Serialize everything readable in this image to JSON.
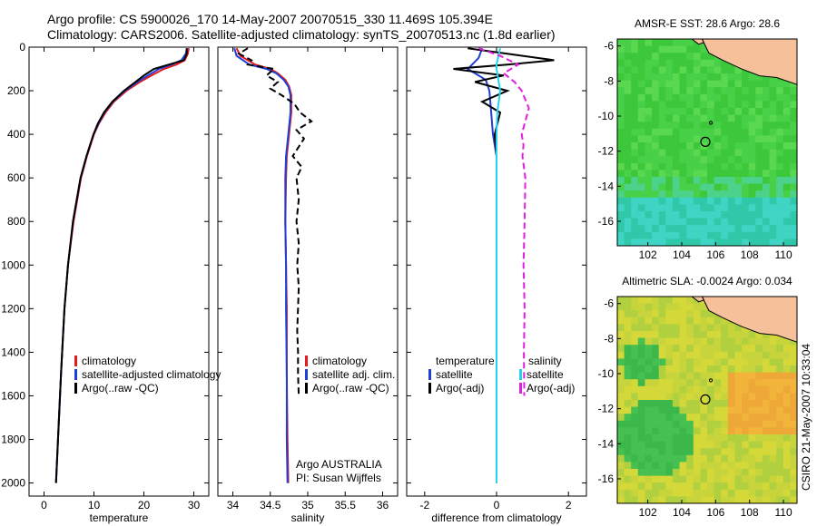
{
  "header": {
    "line1": "Argo profile: CS 5900026_170 14-May-2007 20070515_330 11.469S 105.394E",
    "line2": "Climatology: CARS2006. Satellite-adjusted climatology: synTS_20070513.nc (1.8d earlier)"
  },
  "footer": {
    "vertical_stamp": "CSIRO 21-May-2007 10:33:04"
  },
  "colors": {
    "clim": "#e41a1c",
    "sat": "#1f3fd6",
    "argo": "#000000",
    "sal": "#e020e0",
    "sal_sat": "#22d4ee",
    "land": "#f5c09a"
  },
  "chart_data": [
    {
      "type": "line",
      "id": "temperature",
      "xlabel": "temperature",
      "ylabel": "",
      "xlim": [
        -3,
        33
      ],
      "ylim": [
        2060,
        0
      ],
      "y_inverted": true,
      "xticks": [
        0,
        10,
        20,
        30
      ],
      "yticks": [
        0,
        200,
        400,
        600,
        800,
        1000,
        1200,
        1400,
        1600,
        1800,
        2000
      ],
      "legend": [
        "climatology",
        "satellite-adjusted climatology",
        "Argo(..raw -QC)"
      ],
      "series": [
        {
          "name": "climatology",
          "color": "#e41a1c",
          "depth": [
            5,
            30,
            60,
            80,
            100,
            130,
            160,
            200,
            250,
            300,
            350,
            400,
            500,
            600,
            800,
            1000,
            1200,
            1500,
            1800,
            2000
          ],
          "values": [
            29.0,
            28.8,
            28.2,
            26.5,
            24.0,
            21.5,
            19.2,
            16.5,
            14.0,
            12.3,
            11.0,
            10.0,
            8.6,
            7.4,
            5.9,
            4.8,
            4.1,
            3.4,
            2.8,
            2.4
          ]
        },
        {
          "name": "satellite-adjusted climatology",
          "color": "#1f3fd6",
          "depth": [
            5,
            30,
            60,
            80,
            100,
            130,
            160,
            200,
            250,
            300,
            350,
            400,
            500,
            600,
            800,
            1000,
            1200,
            1500,
            1800,
            2000
          ],
          "values": [
            28.6,
            28.4,
            27.5,
            25.5,
            23.0,
            20.8,
            18.7,
            16.2,
            13.8,
            12.1,
            10.9,
            9.9,
            8.5,
            7.3,
            5.8,
            4.8,
            4.1,
            3.4,
            2.8,
            2.4
          ]
        },
        {
          "name": "Argo(..raw -QC)",
          "color": "#000000",
          "depth": [
            5,
            30,
            60,
            80,
            100,
            130,
            160,
            200,
            250,
            300,
            350,
            400,
            500,
            600,
            800,
            1000,
            1200,
            1500,
            1800,
            2000
          ],
          "values": [
            28.6,
            28.6,
            28.0,
            25.0,
            22.0,
            20.0,
            18.3,
            16.0,
            13.7,
            12.0,
            10.8,
            9.9,
            8.5,
            7.3,
            5.8,
            4.8,
            4.1,
            3.4,
            2.8,
            2.4
          ]
        }
      ]
    },
    {
      "type": "line",
      "id": "salinity",
      "xlabel": "salinity",
      "ylabel": "",
      "xlim": [
        33.8,
        36.2
      ],
      "ylim": [
        2060,
        0
      ],
      "y_inverted": true,
      "xticks": [
        34,
        34.5,
        35,
        35.5,
        36
      ],
      "legend": [
        "climatology",
        "satellite adj. clim.",
        "Argo(..raw -QC)"
      ],
      "annotations": [
        "Argo AUSTRALIA",
        "PI: Susan Wijffels"
      ],
      "series": [
        {
          "name": "climatology",
          "color": "#e41a1c",
          "depth": [
            5,
            40,
            80,
            100,
            120,
            150,
            180,
            220,
            300,
            400,
            500,
            600,
            800,
            1000,
            1200,
            1500,
            1800,
            2000
          ],
          "values": [
            34.05,
            34.1,
            34.3,
            34.5,
            34.6,
            34.7,
            34.75,
            34.78,
            34.78,
            34.75,
            34.72,
            34.71,
            34.7,
            34.71,
            34.72,
            34.72,
            34.73,
            34.74
          ]
        },
        {
          "name": "satellite adj. clim.",
          "color": "#1f3fd6",
          "depth": [
            5,
            40,
            80,
            100,
            120,
            150,
            180,
            220,
            300,
            400,
            500,
            600,
            800,
            1000,
            1200,
            1500,
            1800,
            2000
          ],
          "values": [
            34.02,
            34.05,
            34.22,
            34.45,
            34.58,
            34.68,
            34.74,
            34.77,
            34.77,
            34.74,
            34.71,
            34.7,
            34.7,
            34.71,
            34.71,
            34.72,
            34.72,
            34.73
          ]
        },
        {
          "name": "Argo(..raw -QC)",
          "color": "#000000",
          "depth": [
            5,
            30,
            60,
            80,
            100,
            130,
            160,
            190,
            220,
            260,
            300,
            340,
            380,
            420,
            500,
            550,
            600,
            700,
            800,
            900,
            1000,
            1100,
            1200,
            1300,
            1400,
            1500,
            1600
          ],
          "values": [
            34.2,
            34.08,
            34.25,
            34.2,
            34.55,
            34.45,
            34.6,
            34.5,
            34.65,
            34.82,
            34.9,
            35.05,
            34.85,
            34.95,
            34.8,
            34.92,
            34.85,
            34.88,
            34.85,
            34.88,
            34.86,
            34.88,
            34.87,
            34.86,
            34.87,
            34.87,
            34.88
          ]
        }
      ]
    },
    {
      "type": "line",
      "id": "difference",
      "xlabel": "difference from climatology",
      "ylabel": "",
      "xlim": [
        -2.5,
        2.5
      ],
      "ylim": [
        2060,
        0
      ],
      "y_inverted": true,
      "xticks": [
        -2,
        0,
        2
      ],
      "legend_temperature": {
        "title": "temperature",
        "entries": [
          "satellite",
          "Argo(-adj)"
        ]
      },
      "legend_salinity": {
        "title": "salinity",
        "entries": [
          "satellite",
          "Argo(-adj)"
        ]
      },
      "series": [
        {
          "name": "temperature satellite",
          "color": "#1f3fd6",
          "depth": [
            5,
            50,
            100,
            150,
            200,
            300,
            400,
            500,
            2000
          ],
          "values": [
            -0.4,
            -0.5,
            -0.8,
            -0.3,
            -0.2,
            -0.15,
            -0.1,
            0,
            0
          ]
        },
        {
          "name": "temperature Argo(-adj)",
          "color": "#000000",
          "depth": [
            5,
            60,
            80,
            100,
            130,
            160,
            200,
            250,
            300,
            400,
            500,
            2000
          ],
          "values": [
            -0.8,
            1.6,
            0.3,
            -1.2,
            0.2,
            -0.6,
            0.3,
            -0.4,
            0.1,
            -0.05,
            0,
            0
          ]
        },
        {
          "name": "salinity satellite",
          "color": "#22d4ee",
          "depth": [
            5,
            80,
            100,
            150,
            200,
            300,
            400,
            500,
            2000
          ],
          "values": [
            0.1,
            0.0,
            0.0,
            0.05,
            0.1,
            0.02,
            0.0,
            0.0,
            0.0
          ]
        },
        {
          "name": "salinity Argo(-adj)",
          "color": "#e020e0",
          "depth": [
            5,
            40,
            80,
            120,
            160,
            200,
            280,
            340,
            400,
            450,
            500,
            600,
            800,
            1000,
            1200,
            1400,
            1600
          ],
          "values": [
            -0.5,
            0.1,
            0.6,
            0.2,
            0.5,
            0.7,
            0.9,
            0.8,
            0.7,
            0.75,
            0.72,
            0.8,
            0.78,
            0.75,
            0.78,
            0.76,
            0.77
          ]
        }
      ]
    }
  ],
  "maps": [
    {
      "id": "sst",
      "title": "AMSR-E SST: 28.6  Argo: 28.6",
      "xticks": [
        102,
        104,
        106,
        108,
        110
      ],
      "yticks": [
        -6,
        -8,
        -10,
        -12,
        -14,
        -16
      ],
      "xlim": [
        100.2,
        110.8
      ],
      "ylim": [
        -17.4,
        -5.6
      ],
      "float_lon": 105.394,
      "float_lat": -11.469
    },
    {
      "id": "sla",
      "title": "Altimetric SLA: -0.0024  Argo: 0.034",
      "xticks": [
        102,
        104,
        106,
        108,
        110
      ],
      "yticks": [
        -6,
        -8,
        -10,
        -12,
        -14,
        -16
      ],
      "xlim": [
        100.2,
        110.8
      ],
      "ylim": [
        -17.4,
        -5.6
      ],
      "float_lon": 105.394,
      "float_lat": -11.469
    }
  ]
}
